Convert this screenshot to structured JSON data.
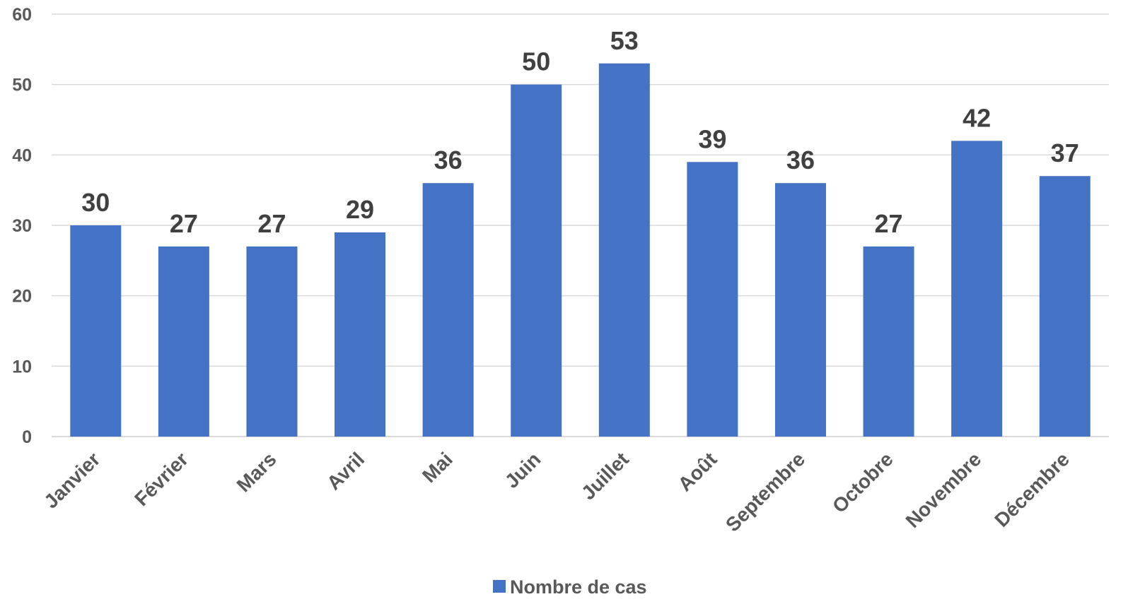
{
  "chart_data": {
    "type": "bar",
    "categories": [
      "Janvier",
      "Février",
      "Mars",
      "Avril",
      "Mai",
      "Juin",
      "Juillet",
      "Août",
      "Septembre",
      "Octobre",
      "Novembre",
      "Décembre"
    ],
    "series": [
      {
        "name": "Nombre de cas",
        "values": [
          30,
          27,
          27,
          29,
          36,
          50,
          53,
          39,
          36,
          27,
          42,
          37
        ],
        "color": "#4472c4"
      }
    ],
    "ylim": [
      0,
      60
    ],
    "yticks": [
      0,
      10,
      20,
      30,
      40,
      50,
      60
    ],
    "grid": true,
    "legend": "bottom",
    "data_labels": true,
    "gridline_color": "#d9d9d9",
    "title": "",
    "xlabel": "",
    "ylabel": ""
  }
}
